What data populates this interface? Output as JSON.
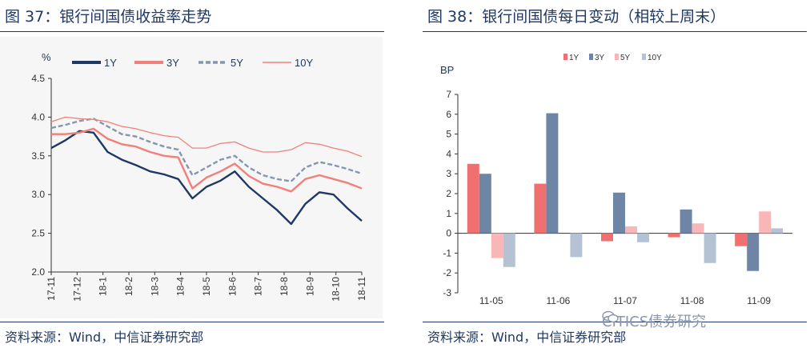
{
  "left": {
    "title": "图 37：银行间国债收益率走势",
    "unit": "%",
    "source": "资料来源：Wind，中信证券研究部"
  },
  "right": {
    "title": "图 38：银行间国债每日变动（相较上周末）",
    "unit": "BP",
    "source": "资料来源：Wind，中信证券研究部"
  },
  "watermark": "CITICS债券研究",
  "chart_data": [
    {
      "type": "line",
      "title": "银行间国债收益率走势",
      "ylabel": "%",
      "ylim": [
        2.0,
        4.5
      ],
      "yticks": [
        2.0,
        2.5,
        3.0,
        3.5,
        4.0,
        4.5
      ],
      "xticks": [
        "17-11",
        "17-12",
        "18-1",
        "18-2",
        "18-3",
        "18-4",
        "18-5",
        "18-6",
        "18-7",
        "18-8",
        "18-9",
        "18-10",
        "18-11"
      ],
      "legend_position": "top",
      "series": [
        {
          "name": "1Y",
          "color": "#1f3864",
          "dash": "solid",
          "values": [
            3.6,
            3.7,
            3.82,
            3.8,
            3.55,
            3.45,
            3.38,
            3.3,
            3.26,
            3.2,
            2.95,
            3.1,
            3.18,
            3.3,
            3.1,
            2.95,
            2.8,
            2.62,
            2.88,
            3.03,
            3.0,
            2.82,
            2.66
          ]
        },
        {
          "name": "3Y",
          "color": "#f2807a",
          "dash": "solid",
          "values": [
            3.78,
            3.78,
            3.8,
            3.85,
            3.72,
            3.65,
            3.62,
            3.55,
            3.5,
            3.48,
            3.08,
            3.22,
            3.3,
            3.4,
            3.24,
            3.14,
            3.1,
            3.04,
            3.2,
            3.25,
            3.2,
            3.15,
            3.08
          ]
        },
        {
          "name": "5Y",
          "color": "#8496b0",
          "dash": "dashed",
          "values": [
            3.86,
            3.9,
            3.95,
            3.98,
            3.88,
            3.78,
            3.75,
            3.68,
            3.62,
            3.58,
            3.25,
            3.35,
            3.45,
            3.5,
            3.35,
            3.25,
            3.2,
            3.17,
            3.35,
            3.42,
            3.38,
            3.33,
            3.27
          ]
        },
        {
          "name": "10Y",
          "color": "#f2807a",
          "dash": "thin",
          "values": [
            3.94,
            4.0,
            3.98,
            3.97,
            3.94,
            3.88,
            3.85,
            3.8,
            3.76,
            3.74,
            3.6,
            3.6,
            3.66,
            3.68,
            3.6,
            3.55,
            3.55,
            3.58,
            3.67,
            3.65,
            3.6,
            3.56,
            3.49
          ]
        }
      ]
    },
    {
      "type": "bar",
      "title": "银行间国债每日变动（相较上周末）",
      "ylabel": "BP",
      "ylim": [
        -3,
        7
      ],
      "yticks": [
        -3,
        -2,
        -1,
        0,
        1,
        2,
        3,
        4,
        5,
        6,
        7
      ],
      "categories": [
        "11-05",
        "11-06",
        "11-07",
        "11-08",
        "11-09"
      ],
      "legend_position": "top",
      "series": [
        {
          "name": "1Y",
          "color": "#f07070",
          "values": [
            3.5,
            2.5,
            -0.4,
            -0.2,
            -0.65
          ]
        },
        {
          "name": "3Y",
          "color": "#6f85a6",
          "values": [
            3.0,
            6.05,
            2.05,
            1.2,
            -1.9
          ]
        },
        {
          "name": "5Y",
          "color": "#f8b7b6",
          "values": [
            -1.25,
            0.0,
            0.35,
            0.5,
            1.1
          ]
        },
        {
          "name": "10Y",
          "color": "#b5c2d4",
          "values": [
            -1.7,
            -1.2,
            -0.45,
            -1.5,
            0.25
          ]
        }
      ]
    }
  ]
}
